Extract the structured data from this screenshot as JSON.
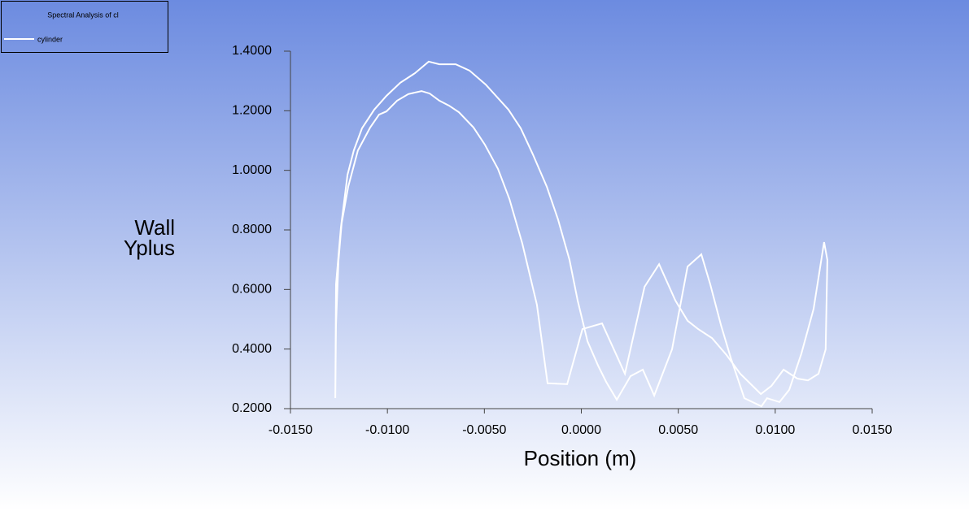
{
  "chart_data": {
    "type": "line",
    "legend_title": "Spectral Analysis of cl",
    "x_label": "Position (m)",
    "y_label": "Wall Yplus",
    "series": [
      {
        "name": "cylinder",
        "color": "#ffffff",
        "x": [
          -0.01269,
          -0.01265,
          -0.0124,
          -0.01206,
          -0.01173,
          -0.01131,
          -0.01068,
          -0.01005,
          -0.00934,
          -0.00858,
          -0.00787,
          -0.00732,
          -0.00648,
          -0.00577,
          -0.00493,
          -0.00376,
          -0.00312,
          -0.0025,
          -0.00178,
          -0.0012,
          -0.00061,
          -0.00019,
          0.00032,
          0.00086,
          0.00128,
          0.00183,
          0.00254,
          0.00317,
          0.00376,
          0.00468,
          0.00548,
          0.00619,
          0.00665,
          0.0072,
          0.0077,
          0.00841,
          0.00929,
          0.00958,
          0.01022,
          0.01072,
          0.01135,
          0.01198,
          0.01252,
          0.01269,
          0.0126,
          0.01223,
          0.01169,
          0.01114,
          0.01043,
          0.0098,
          0.00926,
          0.0082,
          0.00749,
          0.00674,
          0.00603,
          0.00548,
          0.00485,
          0.00401,
          0.00326,
          0.00225,
          0.00107,
          6e-05,
          -0.00073,
          -0.00174,
          -0.00229,
          -0.00304,
          -0.00371,
          -0.0043,
          -0.00497,
          -0.00556,
          -0.00631,
          -0.00682,
          -0.00732,
          -0.00782,
          -0.00824,
          -0.00892,
          -0.0095,
          -0.01005,
          -0.01043,
          -0.01089,
          -0.01152,
          -0.01202,
          -0.01236,
          -0.01252,
          -0.01265,
          -0.01269
        ],
        "y": [
          0.2355,
          0.617,
          0.808,
          0.985,
          1.067,
          1.141,
          1.204,
          1.25,
          1.294,
          1.326,
          1.365,
          1.356,
          1.356,
          1.335,
          1.288,
          1.204,
          1.141,
          1.054,
          0.945,
          0.835,
          0.699,
          0.563,
          0.426,
          0.345,
          0.29,
          0.23,
          0.309,
          0.331,
          0.244,
          0.399,
          0.677,
          0.718,
          0.617,
          0.481,
          0.372,
          0.235,
          0.208,
          0.235,
          0.222,
          0.263,
          0.385,
          0.535,
          0.759,
          0.699,
          0.399,
          0.317,
          0.295,
          0.301,
          0.331,
          0.276,
          0.249,
          0.317,
          0.38,
          0.437,
          0.467,
          0.495,
          0.563,
          0.685,
          0.609,
          0.317,
          0.486,
          0.467,
          0.282,
          0.285,
          0.549,
          0.754,
          0.904,
          1.005,
          1.086,
          1.144,
          1.195,
          1.217,
          1.234,
          1.258,
          1.266,
          1.256,
          1.234,
          1.198,
          1.187,
          1.144,
          1.067,
          0.945,
          0.822,
          0.699,
          0.481,
          0.2355
        ]
      }
    ],
    "xlim": [
      -0.015,
      0.015
    ],
    "ylim": [
      0.2,
      1.4
    ],
    "xticks": [
      {
        "value": -0.015,
        "label": "-0.0150"
      },
      {
        "value": -0.01,
        "label": "-0.0100"
      },
      {
        "value": -0.005,
        "label": "-0.0050"
      },
      {
        "value": 0,
        "label": "0.0000"
      },
      {
        "value": 0.005,
        "label": "0.0050"
      },
      {
        "value": 0.01,
        "label": "0.0100"
      },
      {
        "value": 0.015,
        "label": "0.0150"
      }
    ],
    "yticks": [
      {
        "value": 0.2,
        "label": "0.2000"
      },
      {
        "value": 0.4,
        "label": "0.4000"
      },
      {
        "value": 0.6,
        "label": "0.6000"
      },
      {
        "value": 0.8,
        "label": "0.8000"
      },
      {
        "value": 1.0,
        "label": "1.0000"
      },
      {
        "value": 1.2,
        "label": "1.2000"
      },
      {
        "value": 1.4,
        "label": "1.4000"
      }
    ]
  }
}
